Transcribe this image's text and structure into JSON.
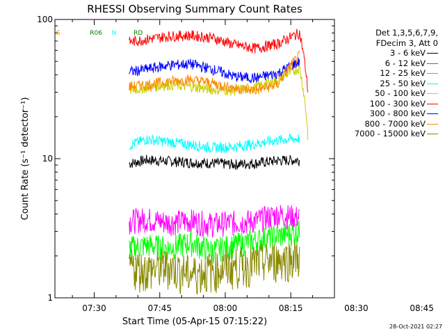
{
  "chart_data": {
    "type": "line",
    "title": "RHESSI Observing Summary Count Rates",
    "xlabel": "Start Time (05-Apr-15 07:15:22)",
    "ylabel": "Count Rate (s⁻¹ detector⁻¹)",
    "yscale": "log",
    "ylim": [
      1,
      100
    ],
    "xlim_minutes": [
      -9,
      55
    ],
    "x_tick_labels": [
      {
        "label": "07:30",
        "minute": 0
      },
      {
        "label": "07:45",
        "minute": 15
      },
      {
        "label": "08:00",
        "minute": 30
      },
      {
        "label": "08:15",
        "minute": 45
      },
      {
        "label": "08:30",
        "minute": 60
      },
      {
        "label": "08:45",
        "minute": 75
      }
    ],
    "y_tick_labels": [
      "1",
      "10",
      "100"
    ],
    "legend_header": [
      "Det 1,3,5,6,7,9,",
      "FDecim 3, Att 0"
    ],
    "legend_position": "right",
    "series": [
      {
        "name": "3 - 6 keV",
        "color": "#000000",
        "points": [
          [
            8,
            9.2
          ],
          [
            12,
            9.8
          ],
          [
            17,
            9.6
          ],
          [
            22,
            9.4
          ],
          [
            27,
            9.3
          ],
          [
            32,
            9.1
          ],
          [
            37,
            9.3
          ],
          [
            42,
            9.7
          ],
          [
            47,
            9.8
          ]
        ]
      },
      {
        "name": "6 - 12 keV",
        "color": "#ff00ff",
        "points": [
          [
            8,
            3.6
          ],
          [
            12,
            3.7
          ],
          [
            17,
            3.5
          ],
          [
            22,
            3.6
          ],
          [
            27,
            3.4
          ],
          [
            32,
            3.5
          ],
          [
            37,
            3.6
          ],
          [
            42,
            4.0
          ],
          [
            47,
            3.8
          ]
        ]
      },
      {
        "name": "12 - 25 keV",
        "color": "#00ff00",
        "points": [
          [
            8,
            2.3
          ],
          [
            12,
            2.4
          ],
          [
            17,
            2.3
          ],
          [
            22,
            2.5
          ],
          [
            27,
            2.2
          ],
          [
            32,
            2.4
          ],
          [
            37,
            2.6
          ],
          [
            42,
            2.8
          ],
          [
            47,
            3.0
          ]
        ]
      },
      {
        "name": "25 - 50 keV",
        "color": "#00ffff",
        "points": [
          [
            8,
            12.5
          ],
          [
            12,
            13.8
          ],
          [
            17,
            13.2
          ],
          [
            22,
            12.6
          ],
          [
            27,
            12.0
          ],
          [
            32,
            12.2
          ],
          [
            37,
            12.8
          ],
          [
            42,
            13.6
          ],
          [
            47,
            14.0
          ]
        ]
      },
      {
        "name": "50 - 100 keV",
        "color": "#cccc00",
        "points": [
          [
            8,
            31
          ],
          [
            12,
            32.5
          ],
          [
            17,
            34
          ],
          [
            22,
            33
          ],
          [
            27,
            31.5
          ],
          [
            32,
            31
          ],
          [
            37,
            32.5
          ],
          [
            42,
            37
          ],
          [
            47,
            45
          ],
          [
            49,
            13.5
          ]
        ]
      },
      {
        "name": "100 - 300 keV",
        "color": "#ff0000",
        "points": [
          [
            8,
            69
          ],
          [
            12,
            72
          ],
          [
            17,
            76
          ],
          [
            22,
            77
          ],
          [
            27,
            74
          ],
          [
            32,
            66
          ],
          [
            37,
            62
          ],
          [
            42,
            67
          ],
          [
            47,
            80
          ],
          [
            49,
            28
          ]
        ]
      },
      {
        "name": "300 - 800 keV",
        "color": "#0000ff",
        "points": [
          [
            8,
            42
          ],
          [
            12,
            44
          ],
          [
            17,
            47
          ],
          [
            22,
            48
          ],
          [
            27,
            44
          ],
          [
            32,
            39
          ],
          [
            37,
            38
          ],
          [
            42,
            41
          ],
          [
            47,
            50
          ]
        ]
      },
      {
        "name": "800 - 7000 keV",
        "color": "#ff8800",
        "points": [
          [
            8,
            33
          ],
          [
            12,
            34
          ],
          [
            17,
            36
          ],
          [
            22,
            37
          ],
          [
            27,
            35
          ],
          [
            32,
            32
          ],
          [
            37,
            31
          ],
          [
            42,
            34
          ],
          [
            47,
            55
          ]
        ]
      },
      {
        "name": "7000 - 15000 keV",
        "color": "#888800",
        "points": [
          [
            8,
            1.7
          ],
          [
            12,
            1.6
          ],
          [
            17,
            1.7
          ],
          [
            22,
            1.5
          ],
          [
            27,
            1.6
          ],
          [
            32,
            1.7
          ],
          [
            37,
            1.8
          ],
          [
            42,
            1.9
          ],
          [
            47,
            2.0
          ]
        ]
      }
    ],
    "annotations": [
      {
        "text": "S",
        "color": "#ff8800",
        "x_minute": -8.7
      },
      {
        "text": "N",
        "color": "#00ffff",
        "x_minute": 4.0
      },
      {
        "text": "RD",
        "color": "#008000",
        "x_minute": 9.0
      },
      {
        "text": "R06",
        "color": "#008000",
        "x_minute": -1.0
      }
    ],
    "grid": false
  },
  "footer": {
    "timestamp": "28-Oct-2021 02:27"
  }
}
